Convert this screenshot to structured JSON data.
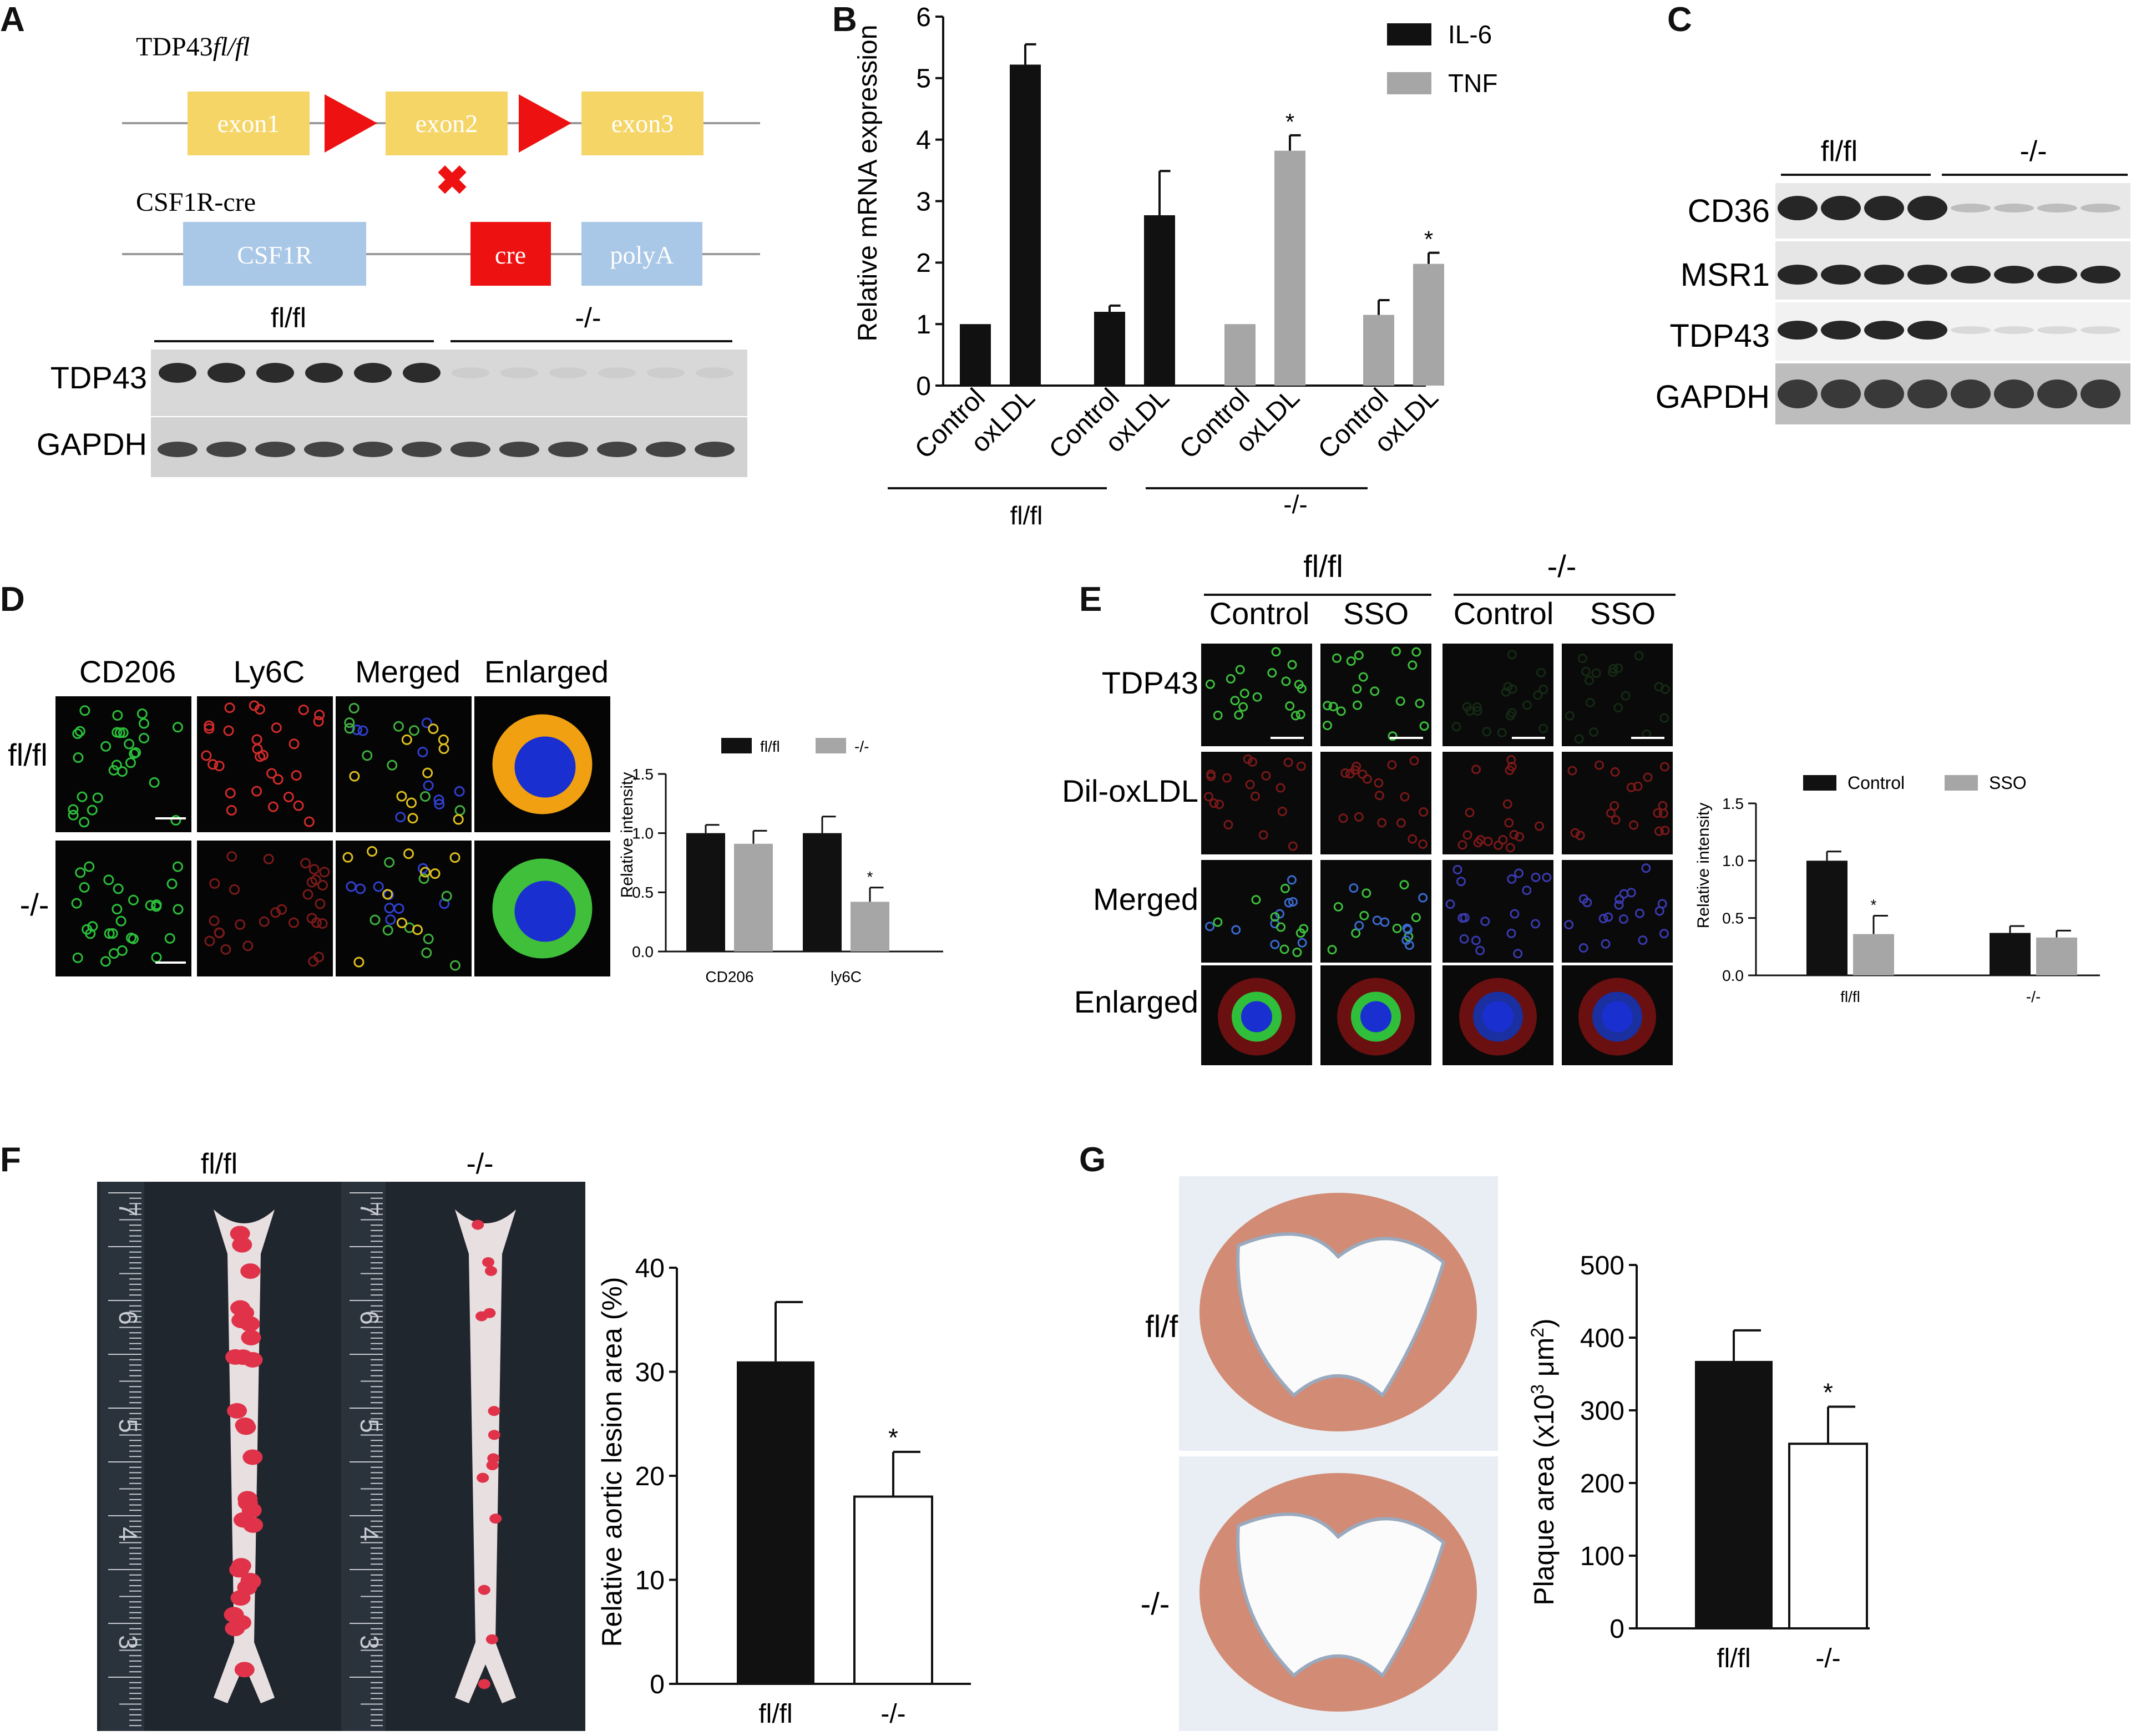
{
  "panels": {
    "A": {
      "label": "A",
      "allele1": "TDP43fl/fl",
      "allele1_prefix": "TDP43",
      "allele1_suffix": "fl/fl",
      "exons": [
        "exon1",
        "exon2",
        "exon3"
      ],
      "allele2": "CSF1R-cre",
      "blocks": [
        "CSF1R",
        "cre",
        "polyA"
      ],
      "groups": [
        "fl/fl",
        "-/-"
      ],
      "rows": [
        "TDP43",
        "GAPDH"
      ],
      "lanes_per_group": 6
    },
    "B": {
      "label": "B"
    },
    "C": {
      "label": "C",
      "groups": [
        "fl/fl",
        "-/-"
      ],
      "rows": [
        "CD36",
        "MSR1",
        "TDP43",
        "GAPDH"
      ],
      "lanes_per_group": 4
    },
    "D": {
      "label": "D",
      "columns": [
        "CD206",
        "Ly6C",
        "Merged",
        "Enlarged"
      ],
      "rows": [
        "fl/fl",
        "-/-"
      ]
    },
    "E": {
      "label": "E",
      "groups": [
        "fl/fl",
        "-/-"
      ],
      "columns": [
        "Control",
        "SSO",
        "Control",
        "SSO"
      ],
      "rows": [
        "TDP43",
        "Dil-oxLDL",
        "Merged",
        "Enlarged"
      ]
    },
    "F": {
      "label": "F",
      "photo_labels": [
        "fl/fl",
        "-/-"
      ],
      "ruler_marks": [
        "7",
        "6",
        "5",
        "4",
        "3"
      ]
    },
    "G": {
      "label": "G",
      "rows": [
        "fl/fl",
        "-/-"
      ]
    }
  },
  "chart_data": [
    {
      "id": "B",
      "type": "bar",
      "ylabel": "Relative mRNA  expression",
      "ylim": [
        0,
        6
      ],
      "yticks": [
        "0",
        "1",
        "2",
        "3",
        "4",
        "5",
        "6"
      ],
      "categories": [
        "Control",
        "oxLDL",
        "Control",
        "oxLDL",
        "Control",
        "oxLDL",
        "Control",
        "oxLDL"
      ],
      "groups": [
        "fl/fl",
        "-/-"
      ],
      "legend": [
        "IL-6",
        "TNF"
      ],
      "legend_position": "top-right",
      "colors": {
        "IL-6": "#111111",
        "TNF": "#a6a6a6"
      },
      "bars": [
        {
          "series": "IL-6",
          "group": "fl/fl",
          "category": "Control",
          "value": 1.0,
          "error": 0
        },
        {
          "series": "IL-6",
          "group": "fl/fl",
          "category": "oxLDL",
          "value": 5.22,
          "error": 0.33
        },
        {
          "series": "IL-6",
          "group": "-/-",
          "category": "Control",
          "value": 1.2,
          "error": 0.1
        },
        {
          "series": "IL-6",
          "group": "-/-",
          "category": "oxLDL",
          "value": 2.77,
          "error": 0.72
        },
        {
          "series": "TNF",
          "group": "fl/fl",
          "category": "Control",
          "value": 1.0,
          "error": 0
        },
        {
          "series": "TNF",
          "group": "fl/fl",
          "category": "oxLDL",
          "value": 3.82,
          "error": 0.25,
          "star": "*"
        },
        {
          "series": "TNF",
          "group": "-/-",
          "category": "Control",
          "value": 1.15,
          "error": 0.24
        },
        {
          "series": "TNF",
          "group": "-/-",
          "category": "oxLDL",
          "value": 1.98,
          "error": 0.18,
          "star": "*"
        }
      ]
    },
    {
      "id": "D",
      "type": "bar",
      "ylabel": "Relative intensity",
      "ylim": [
        0,
        1.5
      ],
      "yticks": [
        "0.0",
        "0.5",
        "1.0",
        "1.5"
      ],
      "categories": [
        "CD206",
        "ly6C"
      ],
      "series": [
        {
          "name": "fl/fl",
          "color": "#111111",
          "values": [
            1.0,
            1.0
          ],
          "errors": [
            0.07,
            0.14
          ],
          "stars": [
            "",
            ""
          ]
        },
        {
          "name": "-/-",
          "color": "#a6a6a6",
          "values": [
            0.91,
            0.42
          ],
          "errors": [
            0.11,
            0.12
          ],
          "stars": [
            "",
            "*"
          ]
        }
      ],
      "legend_position": "top"
    },
    {
      "id": "E",
      "type": "bar",
      "ylabel": "Relative intensity",
      "ylim": [
        0,
        1.5
      ],
      "yticks": [
        "0.0",
        "0.5",
        "1.0",
        "1.5"
      ],
      "categories": [
        "fl/fl",
        "-/-"
      ],
      "series": [
        {
          "name": "Control",
          "color": "#111111",
          "values": [
            1.0,
            0.37
          ],
          "errors": [
            0.08,
            0.06
          ],
          "stars": [
            "",
            ""
          ]
        },
        {
          "name": "SSO",
          "color": "#a6a6a6",
          "values": [
            0.36,
            0.33
          ],
          "errors": [
            0.16,
            0.06
          ],
          "stars": [
            "*",
            ""
          ]
        }
      ],
      "legend_position": "top"
    },
    {
      "id": "F",
      "type": "bar",
      "ylabel": "Relative aortic lesion area (%)",
      "ylim": [
        0,
        40
      ],
      "yticks": [
        "0",
        "10",
        "20",
        "30",
        "40"
      ],
      "categories": [
        "fl/fl",
        "-/-"
      ],
      "values": [
        31,
        18
      ],
      "errors": [
        5.7,
        4.3
      ],
      "fills": [
        "#111111",
        "#ffffff"
      ],
      "stars": [
        "",
        "*"
      ]
    },
    {
      "id": "G",
      "type": "bar",
      "ylabel_main": "Plaque area (x10",
      "ylabel_sup1": "3",
      "ylabel_mid": " μm",
      "ylabel_sup2": "2",
      "ylabel_end": ")",
      "ylim": [
        0,
        500
      ],
      "yticks": [
        "0",
        "100",
        "200",
        "300",
        "400",
        "500"
      ],
      "categories": [
        "fl/fl",
        "-/-"
      ],
      "values": [
        368,
        254
      ],
      "errors": [
        42,
        51
      ],
      "fills": [
        "#111111",
        "#ffffff"
      ],
      "stars": [
        "",
        "*"
      ]
    }
  ]
}
